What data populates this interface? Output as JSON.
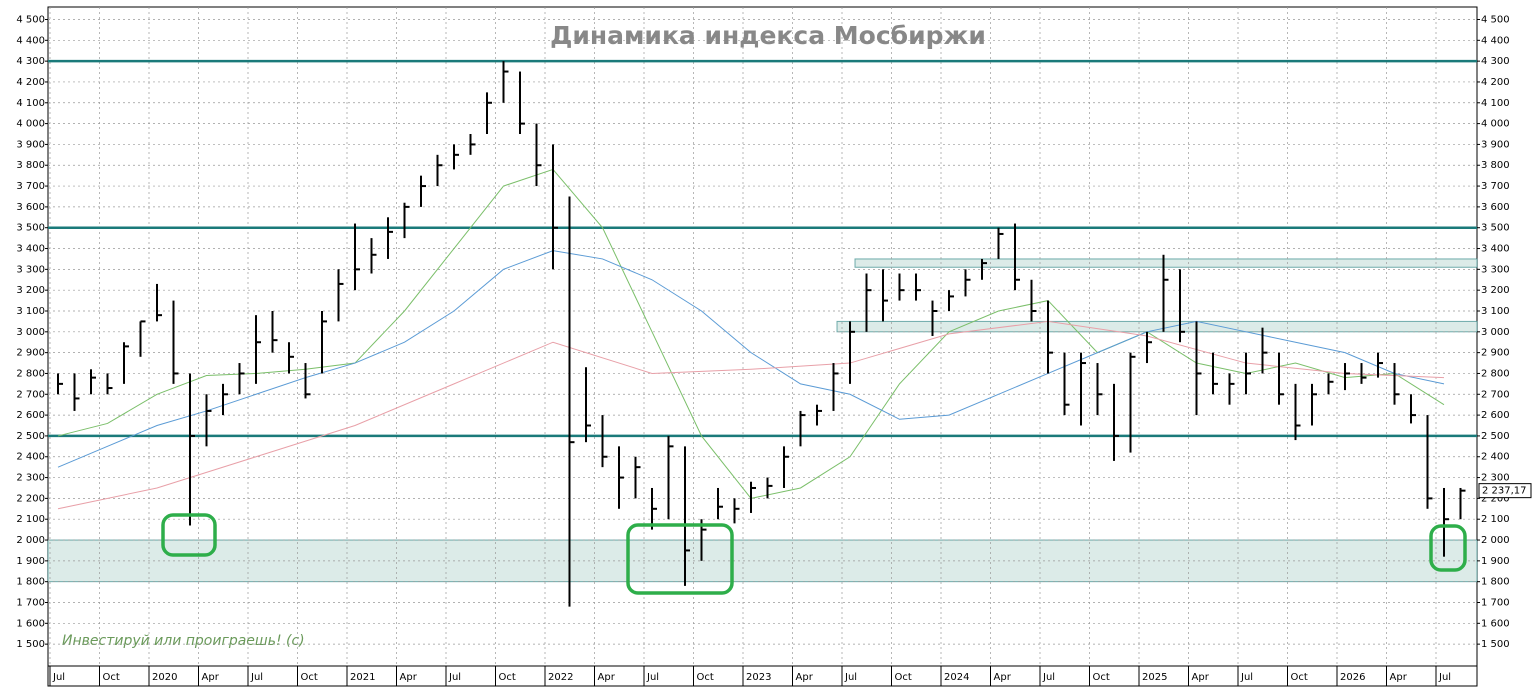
{
  "chart_data": {
    "type": "ohlc",
    "title": "Динамика индекса Мосбиржи",
    "watermark": "Инвестируй или проиграешь! (с)",
    "categories": [
      "Jul",
      null,
      null,
      "Oct",
      null,
      null,
      "2020",
      null,
      null,
      "Apr",
      null,
      null,
      "Jul",
      null,
      null,
      "Oct",
      null,
      null,
      "2021",
      null,
      null,
      "Apr",
      null,
      null,
      "Jul",
      null,
      null,
      "Oct",
      null,
      null,
      "2022",
      null,
      null,
      "Apr",
      null,
      null,
      "Jul",
      null,
      null,
      "Oct",
      null,
      null,
      "2023",
      null,
      null,
      "Apr",
      null,
      null,
      "Jul",
      null,
      null,
      "Oct",
      null,
      null,
      "2024",
      null,
      null,
      "Apr",
      null,
      null,
      "Jul",
      null,
      null,
      "Oct",
      null,
      null,
      "2025",
      null,
      null,
      "Apr",
      null,
      null,
      "Jul",
      null,
      null,
      "Oct",
      null,
      null,
      "2026",
      null,
      null,
      "Apr",
      null,
      null,
      "Jul",
      null
    ],
    "high": [
      2800,
      2800,
      2820,
      2800,
      2950,
      3050,
      3230,
      3150,
      2800,
      2700,
      2750,
      2850,
      3080,
      3100,
      2950,
      2850,
      3100,
      3300,
      3520,
      3450,
      3550,
      3620,
      3750,
      3850,
      3900,
      3950,
      4150,
      4300,
      4250,
      4000,
      3900,
      3650,
      2830,
      2600,
      2450,
      2400,
      2250,
      2500,
      2450,
      2100,
      2250,
      2200,
      2280,
      2300,
      2450,
      2620,
      2650,
      2850,
      3050,
      3280,
      3300,
      3280,
      3280,
      3150,
      3200,
      3300,
      3350,
      3500,
      3520,
      3250,
      3150,
      2900,
      2900,
      2850,
      2750,
      2900,
      3000,
      3370,
      3300,
      3050,
      2900,
      2800,
      2900,
      3020,
      2900,
      2750,
      2750,
      2800,
      2850,
      2850,
      2900,
      2850,
      2700,
      2600,
      2250,
      2250
    ],
    "low": [
      2700,
      2620,
      2700,
      2700,
      2750,
      2880,
      3050,
      2750,
      2070,
      2450,
      2600,
      2700,
      2750,
      2900,
      2800,
      2680,
      2800,
      3050,
      3200,
      3280,
      3350,
      3450,
      3600,
      3700,
      3780,
      3850,
      3950,
      4100,
      3950,
      3700,
      3300,
      1680,
      2470,
      2350,
      2150,
      2200,
      2050,
      2100,
      1780,
      1900,
      2100,
      2080,
      2130,
      2200,
      2250,
      2450,
      2550,
      2620,
      2750,
      3000,
      3050,
      3150,
      3150,
      2980,
      3100,
      3170,
      3250,
      3350,
      3200,
      3050,
      2800,
      2600,
      2550,
      2600,
      2380,
      2420,
      2850,
      3000,
      2950,
      2600,
      2700,
      2650,
      2700,
      2800,
      2650,
      2480,
      2550,
      2700,
      2720,
      2750,
      2780,
      2650,
      2560,
      2150,
      1920,
      2100
    ],
    "close": [
      2750,
      2680,
      2780,
      2730,
      2930,
      3050,
      3080,
      2800,
      2500,
      2620,
      2700,
      2800,
      2950,
      2960,
      2880,
      2700,
      3050,
      3230,
      3300,
      3370,
      3480,
      3600,
      3700,
      3800,
      3850,
      3900,
      4100,
      4250,
      4000,
      3800,
      3500,
      2470,
      2550,
      2400,
      2300,
      2350,
      2150,
      2450,
      1950,
      2050,
      2160,
      2150,
      2250,
      2260,
      2400,
      2600,
      2620,
      2800,
      3000,
      3200,
      3150,
      3200,
      3200,
      3100,
      3170,
      3250,
      3330,
      3470,
      3250,
      3100,
      2900,
      2650,
      2850,
      2700,
      2500,
      2880,
      2950,
      3250,
      3000,
      2800,
      2750,
      2750,
      2800,
      2900,
      2700,
      2550,
      2700,
      2760,
      2800,
      2780,
      2850,
      2700,
      2600,
      2200,
      2100,
      2237.17
    ],
    "last_label": "2 237,17",
    "bar_color": "#000000",
    "moving_averages": [
      {
        "color": "#7bbf6a",
        "x": [
          0,
          3,
          6,
          9,
          12,
          15,
          18,
          21,
          24,
          27,
          30,
          33,
          36,
          39,
          42,
          45,
          48,
          51,
          54,
          57,
          60,
          63,
          66,
          69,
          72,
          75,
          78,
          81,
          84
        ],
        "values": [
          2500,
          2560,
          2700,
          2790,
          2800,
          2820,
          2850,
          3100,
          3400,
          3700,
          3780,
          3500,
          3000,
          2500,
          2200,
          2250,
          2400,
          2750,
          3000,
          3100,
          3150,
          2900,
          3000,
          2850,
          2800,
          2850,
          2780,
          2800,
          2650
        ]
      },
      {
        "color": "#5b9bd5",
        "x": [
          0,
          3,
          6,
          9,
          12,
          15,
          18,
          21,
          24,
          27,
          30,
          33,
          36,
          39,
          42,
          45,
          48,
          51,
          54,
          57,
          60,
          63,
          66,
          69,
          72,
          75,
          78,
          81,
          84
        ],
        "values": [
          2350,
          2450,
          2550,
          2620,
          2700,
          2780,
          2850,
          2950,
          3100,
          3300,
          3390,
          3350,
          3250,
          3100,
          2900,
          2750,
          2700,
          2580,
          2600,
          2700,
          2800,
          2900,
          3000,
          3050,
          3000,
          2950,
          2900,
          2800,
          2750
        ]
      },
      {
        "color": "#e8a0a8",
        "x": [
          0,
          6,
          12,
          18,
          24,
          30,
          36,
          42,
          48,
          54,
          60,
          66,
          72,
          78,
          84
        ],
        "values": [
          2150,
          2250,
          2400,
          2550,
          2750,
          2950,
          2800,
          2820,
          2850,
          2990,
          3050,
          2980,
          2850,
          2800,
          2780
        ]
      }
    ],
    "levels": [
      4300,
      3500,
      2500
    ],
    "level_color": "#1a7a7a",
    "zones": [
      [
        1800,
        2000
      ],
      [
        3310,
        3350
      ],
      [
        3000,
        3050
      ]
    ],
    "zone_color": "#dcebe8",
    "ylim": [
      1395,
      4560
    ],
    "yticks": [
      {
        "value": 1500,
        "label": "1 500"
      },
      {
        "value": 1600,
        "label": "1 600"
      },
      {
        "value": 1700,
        "label": "1 700"
      },
      {
        "value": 1800,
        "label": "1 800"
      },
      {
        "value": 1900,
        "label": "1 900"
      },
      {
        "value": 2000,
        "label": "2 000"
      },
      {
        "value": 2100,
        "label": "2 100"
      },
      {
        "value": 2200,
        "label": "2 200"
      },
      {
        "value": 2300,
        "label": "2 300"
      },
      {
        "value": 2400,
        "label": "2 400"
      },
      {
        "value": 2500,
        "label": "2 500"
      },
      {
        "value": 2600,
        "label": "2 600"
      },
      {
        "value": 2700,
        "label": "2 700"
      },
      {
        "value": 2800,
        "label": "2 800"
      },
      {
        "value": 2900,
        "label": "2 900"
      },
      {
        "value": 3000,
        "label": "3 000"
      },
      {
        "value": 3100,
        "label": "3 100"
      },
      {
        "value": 3200,
        "label": "3 200"
      },
      {
        "value": 3300,
        "label": "3 300"
      },
      {
        "value": 3400,
        "label": "3 400"
      },
      {
        "value": 3500,
        "label": "3 500"
      },
      {
        "value": 3600,
        "label": "3 600"
      },
      {
        "value": 3700,
        "label": "3 700"
      },
      {
        "value": 3800,
        "label": "3 800"
      },
      {
        "value": 3900,
        "label": "3 900"
      },
      {
        "value": 4000,
        "label": "4 000"
      },
      {
        "value": 4100,
        "label": "4 100"
      },
      {
        "value": 4200,
        "label": "4 200"
      },
      {
        "value": 4300,
        "label": "4 300"
      },
      {
        "value": 4400,
        "label": "4 400"
      },
      {
        "value": 4500,
        "label": "4 500"
      }
    ],
    "grid": true
  }
}
